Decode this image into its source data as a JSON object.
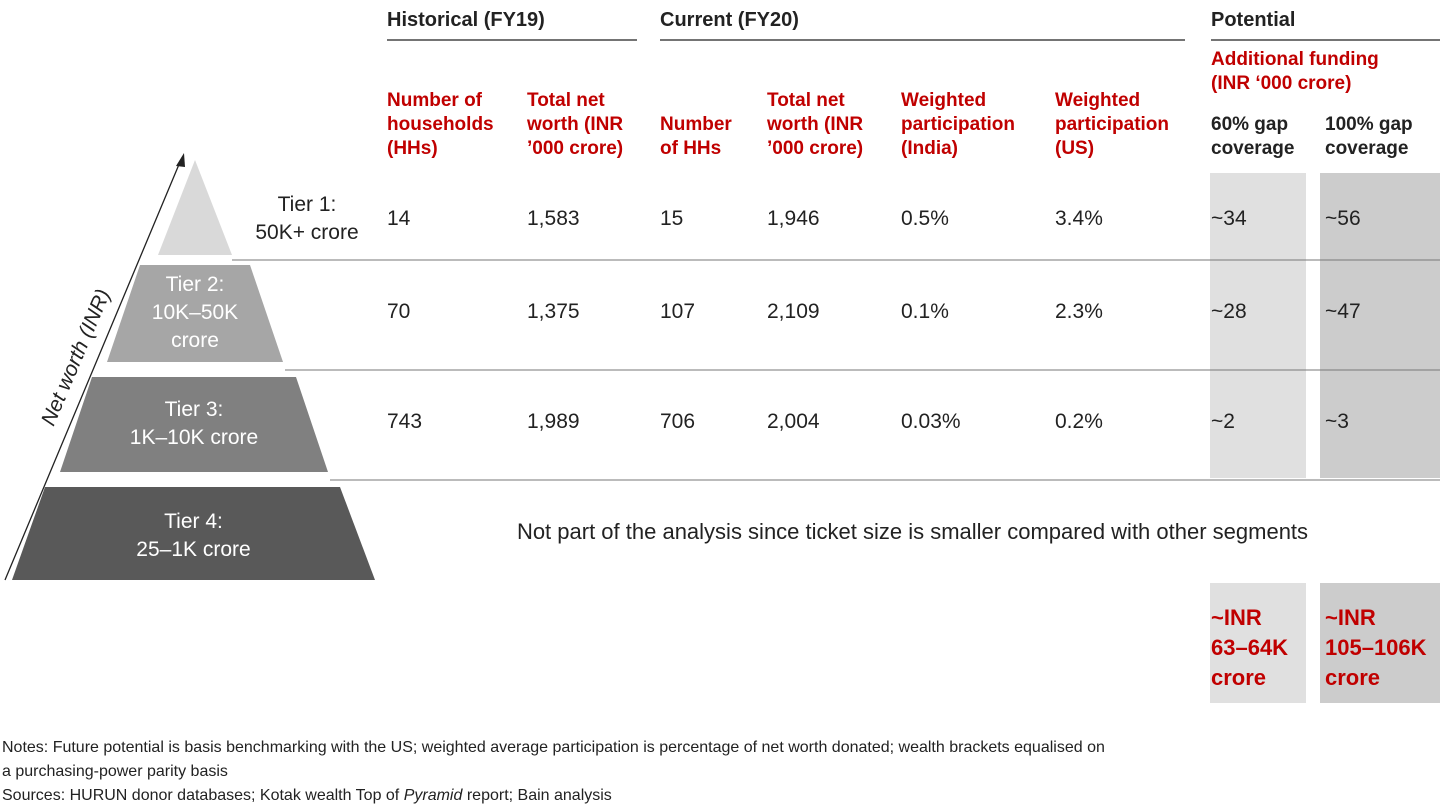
{
  "groups": [
    "Historical (FY19)",
    "Current (FY20)",
    "Potential"
  ],
  "potential_subtitle": "Additional funding\n(INR ‘000 crore)",
  "columns": [
    "Number of\nhouseholds\n(HHs)",
    "Total net\nworth (INR\n’000 crore)",
    "Number\nof HHs",
    "Total net\nworth (INR\n’000 crore)",
    "Weighted\nparticipation\n(India)",
    "Weighted\nparticipation\n(US)",
    "60% gap\ncoverage",
    "100% gap\ncoverage"
  ],
  "axis_label": "Net worth (INR)",
  "tiers": [
    {
      "label": "Tier 1:\n50K+ crore",
      "values": [
        "14",
        "1,583",
        "15",
        "1,946",
        "0.5%",
        "3.4%",
        "~34",
        "~56"
      ]
    },
    {
      "label": "Tier 2:\n10K–50K\ncrore",
      "values": [
        "70",
        "1,375",
        "107",
        "2,109",
        "0.1%",
        "2.3%",
        "~28",
        "~47"
      ]
    },
    {
      "label": "Tier 3:\n1K–10K crore",
      "values": [
        "743",
        "1,989",
        "706",
        "2,004",
        "0.03%",
        "0.2%",
        "~2",
        "~3"
      ]
    },
    {
      "label": "Tier 4:\n25–1K crore"
    }
  ],
  "tier4_note": "Not part of the analysis since ticket size is smaller compared with other segments",
  "totals": [
    "~INR\n63–64K\ncrore",
    "~INR\n105–106K\ncrore"
  ],
  "notes": "Notes: Future potential is basis benchmarking with the US; weighted average participation is percentage of net worth donated; wealth brackets equalised on\na purchasing-power parity basis",
  "sources": [
    "Sources: HURUN donor databases; Kotak wealth Top of ",
    "Pyramid",
    " report; Bain analysis"
  ]
}
